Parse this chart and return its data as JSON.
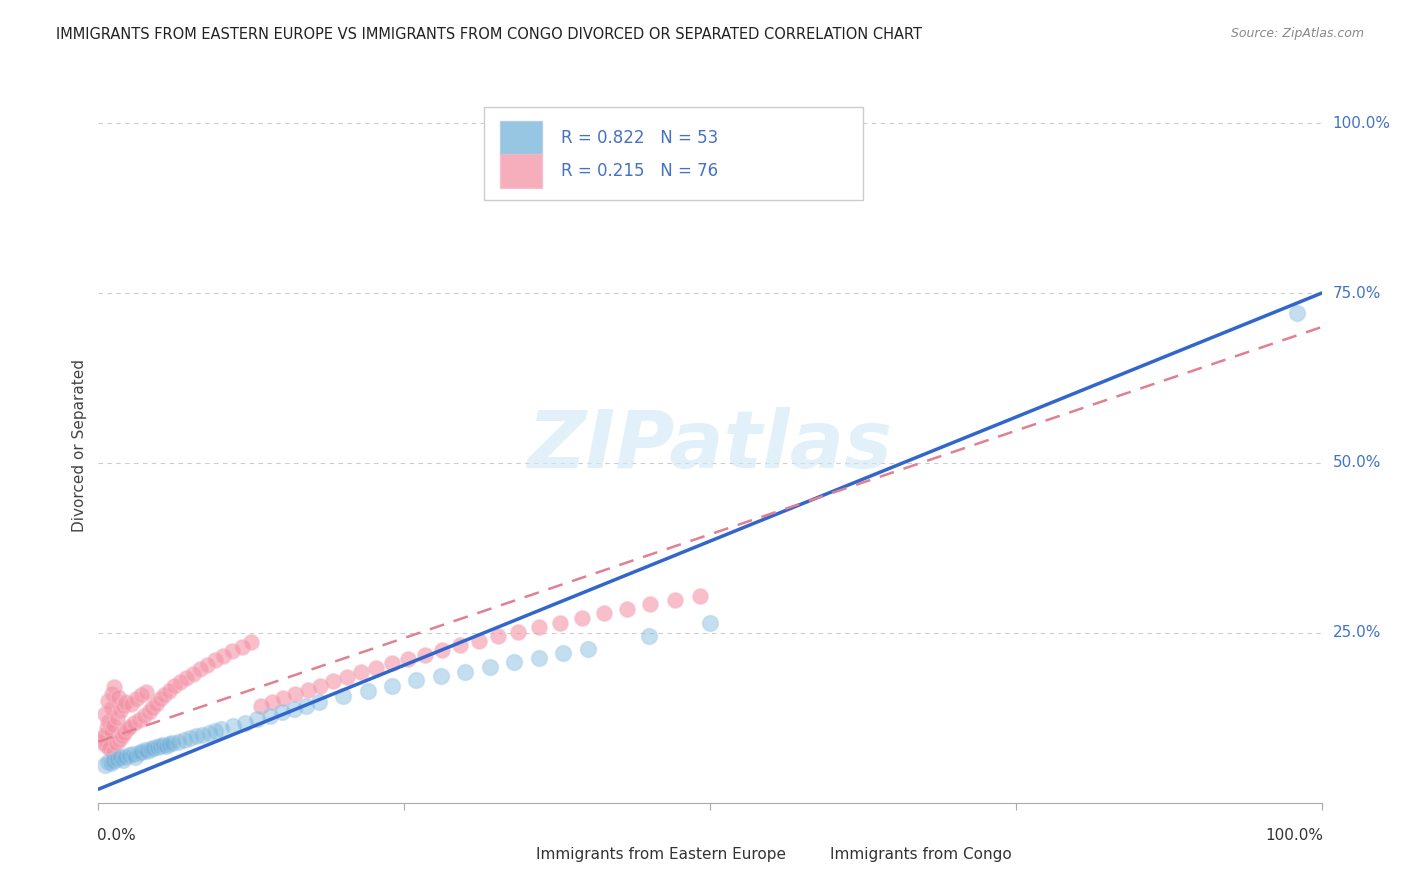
{
  "title": "IMMIGRANTS FROM EASTERN EUROPE VS IMMIGRANTS FROM CONGO DIVORCED OR SEPARATED CORRELATION CHART",
  "source": "Source: ZipAtlas.com",
  "ylabel": "Divorced or Separated",
  "legend1_R": "0.822",
  "legend1_N": "53",
  "legend2_R": "0.215",
  "legend2_N": "76",
  "blue_color": "#a8c8e8",
  "pink_color": "#f4b8c8",
  "blue_fill": "#6aaed6",
  "pink_fill": "#f48ca0",
  "trendline_blue": "#3366cc",
  "trendline_pink": "#e08090",
  "watermark_color": "#d0e8f5",
  "label_color": "#4472c4",
  "title_color": "#222222",
  "right_label_color": "#4472c4",
  "legend_bottom_blue": "Immigrants from Eastern Europe",
  "legend_bottom_pink": "Immigrants from Congo",
  "blue_x": [
    0.005,
    0.008,
    0.01,
    0.012,
    0.015,
    0.018,
    0.02,
    0.022,
    0.025,
    0.028,
    0.03,
    0.033,
    0.035,
    0.038,
    0.04,
    0.043,
    0.045,
    0.048,
    0.05,
    0.053,
    0.055,
    0.058,
    0.06,
    0.065,
    0.07,
    0.075,
    0.08,
    0.085,
    0.09,
    0.095,
    0.1,
    0.11,
    0.12,
    0.13,
    0.14,
    0.15,
    0.16,
    0.17,
    0.18,
    0.2,
    0.22,
    0.24,
    0.26,
    0.28,
    0.3,
    0.32,
    0.34,
    0.36,
    0.38,
    0.4,
    0.45,
    0.5,
    0.98
  ],
  "blue_y": [
    0.055,
    0.06,
    0.058,
    0.062,
    0.065,
    0.068,
    0.063,
    0.067,
    0.07,
    0.072,
    0.068,
    0.073,
    0.075,
    0.078,
    0.076,
    0.079,
    0.08,
    0.082,
    0.083,
    0.085,
    0.084,
    0.086,
    0.088,
    0.09,
    0.093,
    0.095,
    0.098,
    0.1,
    0.103,
    0.105,
    0.108,
    0.113,
    0.118,
    0.123,
    0.128,
    0.134,
    0.138,
    0.143,
    0.148,
    0.157,
    0.165,
    0.172,
    0.18,
    0.187,
    0.193,
    0.2,
    0.207,
    0.213,
    0.22,
    0.227,
    0.245,
    0.265,
    0.72
  ],
  "pink_x": [
    0.003,
    0.004,
    0.005,
    0.005,
    0.006,
    0.007,
    0.008,
    0.008,
    0.009,
    0.01,
    0.01,
    0.011,
    0.012,
    0.012,
    0.013,
    0.014,
    0.015,
    0.016,
    0.017,
    0.018,
    0.019,
    0.02,
    0.021,
    0.022,
    0.023,
    0.025,
    0.027,
    0.029,
    0.031,
    0.033,
    0.035,
    0.037,
    0.039,
    0.041,
    0.044,
    0.047,
    0.05,
    0.054,
    0.058,
    0.062,
    0.067,
    0.072,
    0.077,
    0.083,
    0.089,
    0.095,
    0.102,
    0.109,
    0.117,
    0.125,
    0.133,
    0.142,
    0.151,
    0.161,
    0.171,
    0.181,
    0.192,
    0.203,
    0.215,
    0.227,
    0.24,
    0.253,
    0.267,
    0.281,
    0.296,
    0.311,
    0.327,
    0.343,
    0.36,
    0.377,
    0.395,
    0.413,
    0.432,
    0.451,
    0.471,
    0.492
  ],
  "pink_y": [
    0.09,
    0.095,
    0.1,
    0.13,
    0.085,
    0.11,
    0.12,
    0.15,
    0.08,
    0.105,
    0.14,
    0.16,
    0.075,
    0.115,
    0.17,
    0.088,
    0.125,
    0.155,
    0.093,
    0.135,
    0.098,
    0.142,
    0.103,
    0.148,
    0.108,
    0.112,
    0.145,
    0.118,
    0.152,
    0.122,
    0.158,
    0.128,
    0.163,
    0.134,
    0.14,
    0.145,
    0.152,
    0.158,
    0.165,
    0.172,
    0.178,
    0.184,
    0.19,
    0.197,
    0.203,
    0.21,
    0.216,
    0.223,
    0.229,
    0.236,
    0.143,
    0.148,
    0.154,
    0.16,
    0.166,
    0.172,
    0.179,
    0.185,
    0.192,
    0.199,
    0.205,
    0.212,
    0.218,
    0.225,
    0.232,
    0.238,
    0.245,
    0.252,
    0.259,
    0.265,
    0.272,
    0.279,
    0.285,
    0.292,
    0.299,
    0.305
  ],
  "blue_trendline_x": [
    0.0,
    1.0
  ],
  "blue_trendline_y": [
    0.02,
    0.75
  ],
  "pink_trendline_x": [
    0.0,
    1.0
  ],
  "pink_trendline_y": [
    0.09,
    0.7
  ],
  "xlim": [
    0.0,
    1.0
  ],
  "ylim": [
    0.0,
    1.05
  ],
  "ytick_positions": [
    0.25,
    0.5,
    0.75,
    1.0
  ],
  "ytick_labels": [
    "25.0%",
    "50.0%",
    "75.0%",
    "100.0%"
  ]
}
